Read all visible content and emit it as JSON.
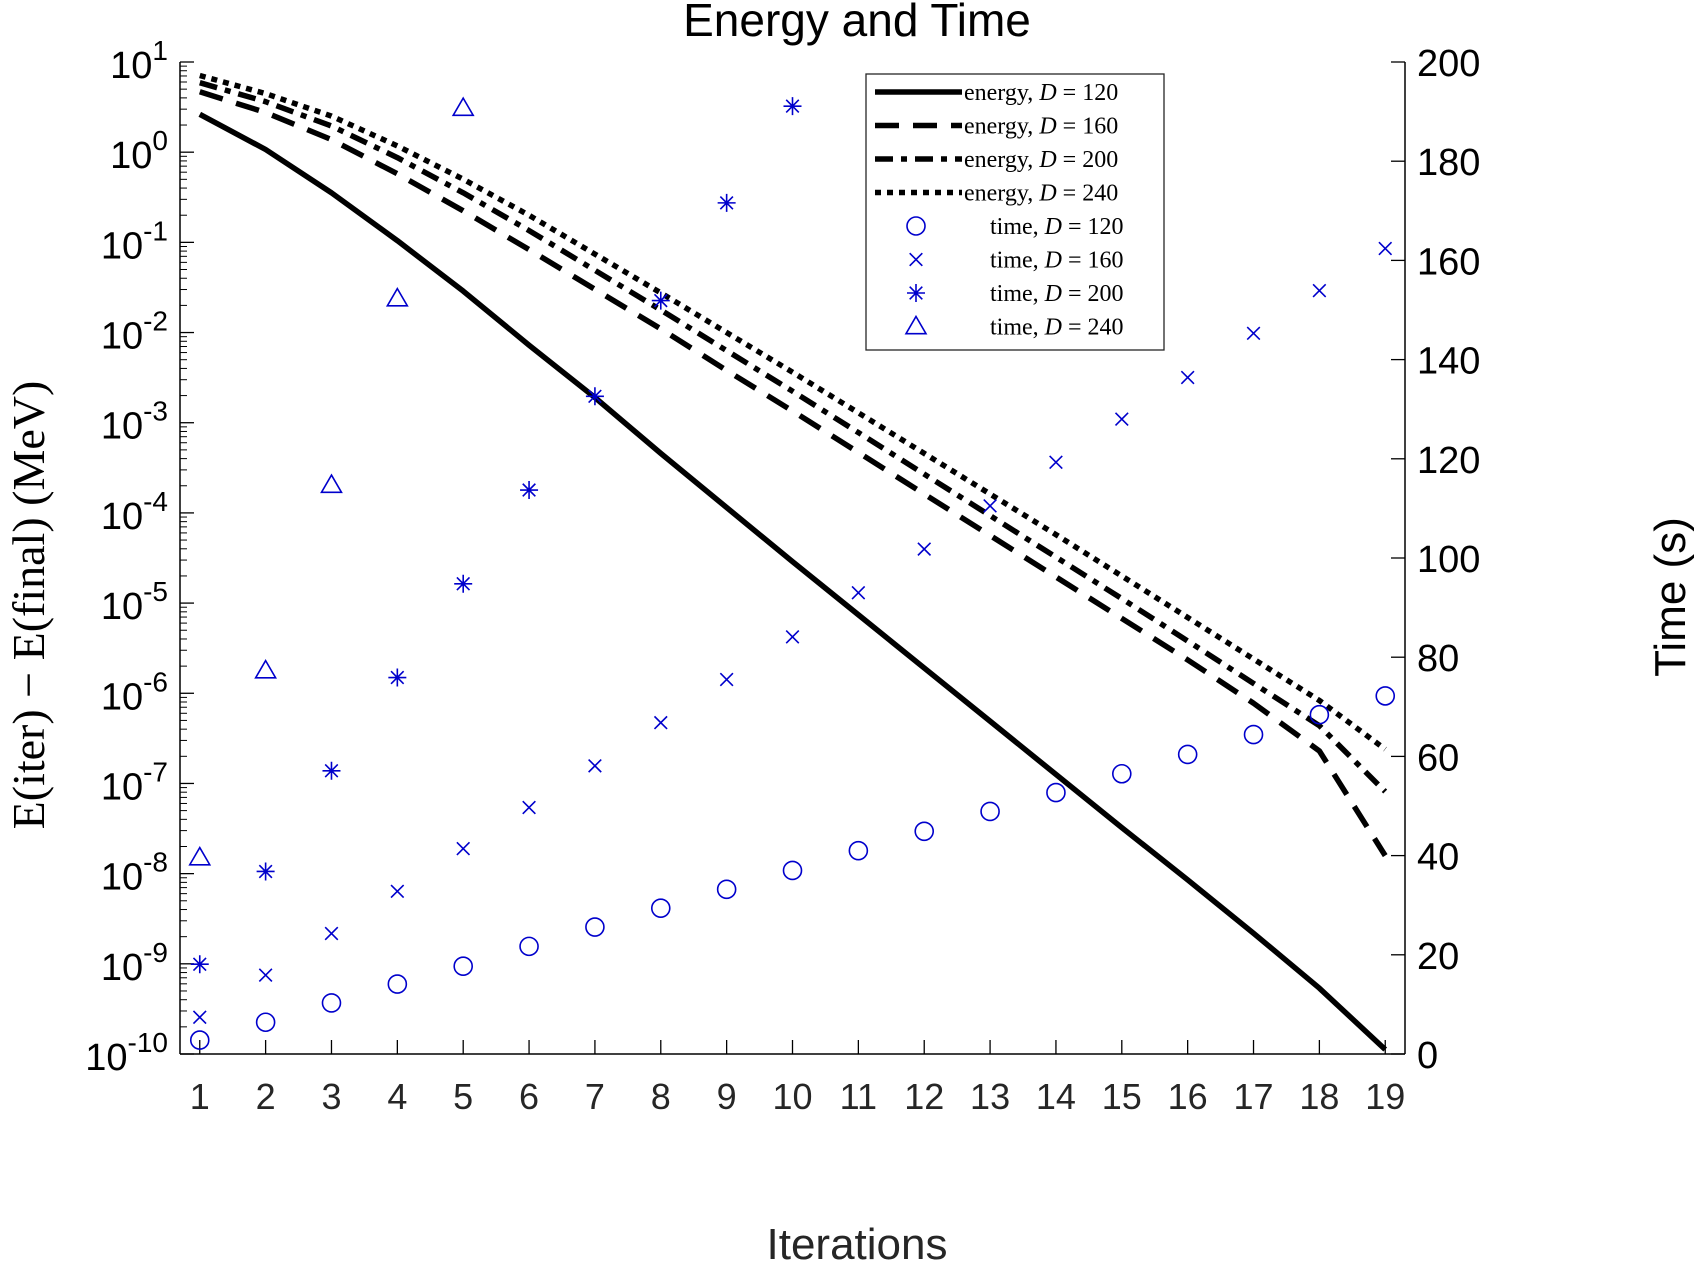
{
  "chart_data": {
    "type": "line",
    "title": "Energy and Time",
    "xlabel": "Iterations",
    "ylabel_left": "E(iter) − E(final)  (MeV)",
    "ylabel_right": "Time (s)",
    "x": [
      1,
      2,
      3,
      4,
      5,
      6,
      7,
      8,
      9,
      10,
      11,
      12,
      13,
      14,
      15,
      16,
      17,
      18,
      19
    ],
    "x_ticks": [
      "1",
      "2",
      "3",
      "4",
      "5",
      "6",
      "7",
      "8",
      "9",
      "10",
      "11",
      "12",
      "13",
      "14",
      "15",
      "16",
      "17",
      "18",
      "19"
    ],
    "xlim": [
      0.7,
      19.3
    ],
    "y_left": {
      "scale": "log",
      "ylim": [
        1e-10,
        10
      ],
      "tick_exponents": [
        1,
        0,
        -1,
        -2,
        -3,
        -4,
        -5,
        -6,
        -7,
        -8,
        -9,
        -10
      ],
      "tick_base": "10"
    },
    "y_right": {
      "scale": "linear",
      "ylim": [
        0,
        200
      ],
      "ticks": [
        0,
        20,
        40,
        60,
        80,
        100,
        120,
        140,
        160,
        180,
        200
      ]
    },
    "grid": false,
    "legend_position": "top-right",
    "series": [
      {
        "name": "energy, D = 120",
        "label_prefix": "energy,",
        "D": "120",
        "axis": "left",
        "style": "solid",
        "color": "#000000",
        "log10_values": [
          0.42,
          0.03,
          -0.45,
          -0.98,
          -1.54,
          -2.14,
          -2.72,
          -3.34,
          -3.94,
          -4.54,
          -5.13,
          -5.72,
          -6.31,
          -6.9,
          -7.49,
          -8.07,
          -8.66,
          -9.27,
          -9.95
        ]
      },
      {
        "name": "energy, D = 160",
        "label_prefix": "energy,",
        "D": "160",
        "axis": "left",
        "style": "dashed",
        "color": "#000000",
        "log10_values": [
          0.67,
          0.44,
          0.14,
          -0.24,
          -0.65,
          -1.08,
          -1.52,
          -1.96,
          -2.42,
          -2.87,
          -3.33,
          -3.79,
          -4.25,
          -4.71,
          -5.17,
          -5.63,
          -6.11,
          -6.64,
          -7.8
        ]
      },
      {
        "name": "energy, D = 200",
        "label_prefix": "energy,",
        "D": "200",
        "axis": "left",
        "style": "dashdot",
        "color": "#000000",
        "log10_values": [
          0.77,
          0.56,
          0.29,
          -0.06,
          -0.45,
          -0.87,
          -1.31,
          -1.75,
          -2.2,
          -2.65,
          -3.11,
          -3.57,
          -4.03,
          -4.49,
          -4.95,
          -5.42,
          -5.89,
          -6.36,
          -7.09
        ]
      },
      {
        "name": "energy, D = 240",
        "label_prefix": "energy,",
        "D": "240",
        "axis": "left",
        "style": "dotted",
        "color": "#000000",
        "log10_values": [
          0.85,
          0.65,
          0.4,
          0.07,
          -0.3,
          -0.7,
          -1.13,
          -1.56,
          -2.0,
          -2.44,
          -2.89,
          -3.34,
          -3.79,
          -4.24,
          -4.7,
          -5.16,
          -5.62,
          -6.08,
          -6.62
        ]
      },
      {
        "name": "time, D = 120",
        "label_prefix": "time,",
        "D": "120",
        "axis": "right",
        "marker": "circle",
        "color": "#0000cc",
        "values": [
          2.8,
          6.4,
          10.3,
          14.1,
          17.7,
          21.7,
          25.6,
          29.4,
          33.2,
          37.0,
          41.0,
          44.9,
          48.9,
          52.7,
          56.5,
          60.4,
          64.4,
          68.4,
          72.2
        ]
      },
      {
        "name": "time, D = 160",
        "label_prefix": "time,",
        "D": "160",
        "axis": "right",
        "marker": "x",
        "color": "#0000cc",
        "values": [
          7.4,
          15.9,
          24.3,
          32.8,
          41.4,
          49.7,
          58.1,
          66.8,
          75.5,
          84.1,
          93.0,
          101.8,
          110.5,
          119.3,
          128.0,
          136.4,
          145.3,
          153.9,
          162.4
        ]
      },
      {
        "name": "time, D = 200",
        "label_prefix": "time,",
        "D": "200",
        "axis": "right",
        "marker": "asterisk",
        "color": "#0000cc",
        "values": [
          18.1,
          36.8,
          57.1,
          75.9,
          94.8,
          113.7,
          132.6,
          151.9,
          171.6,
          191.1
        ]
      },
      {
        "name": "time, D = 240",
        "label_prefix": "time,",
        "D": "240",
        "axis": "right",
        "marker": "triangle",
        "color": "#0000cc",
        "values": [
          39.6,
          77.3,
          114.7,
          152.3,
          190.7
        ]
      }
    ]
  }
}
